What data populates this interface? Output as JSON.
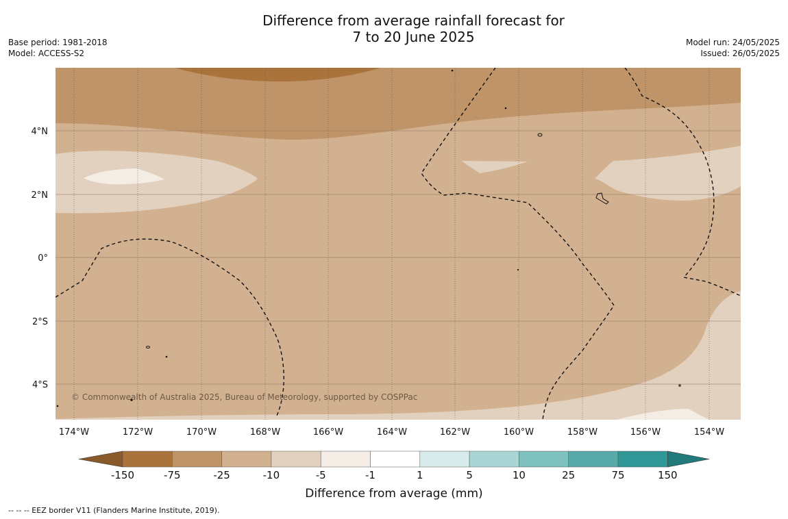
{
  "title_line1": "Difference from average rainfall forecast for",
  "title_line2": "7 to 20 June 2025",
  "meta_left": [
    "Base period: 1981-2018",
    "Model: ACCESS-S2"
  ],
  "meta_right": [
    "Model run: 24/05/2025",
    "Issued: 26/05/2025"
  ],
  "lat_labels": [
    "4°N",
    "2°N",
    "0°",
    "2°S",
    "4°S"
  ],
  "lon_labels": [
    "174°W",
    "172°W",
    "170°W",
    "168°W",
    "166°W",
    "164°W",
    "162°W",
    "160°W",
    "158°W",
    "156°W",
    "154°W"
  ],
  "credit": "© Commonwealth of Australia 2025, Bureau of Meteorology, supported by COSPPac",
  "colorbar": {
    "ticks": [
      "-150",
      "-75",
      "-25",
      "-10",
      "-5",
      "-1",
      "1",
      "5",
      "10",
      "25",
      "75",
      "150"
    ],
    "colors": [
      "#8b5a2b",
      "#ab733c",
      "#c09469",
      "#d2b190",
      "#e3d1bf",
      "#f3ede6",
      "#ffffff",
      "#d7ecea",
      "#a9d6d5",
      "#7fc1bf",
      "#58aaa8",
      "#2f9795",
      "#207b7a"
    ],
    "label": "Difference from average (mm)"
  },
  "footer": "--  --  -- EEZ border V11 (Flanders Marine Institute, 2019)."
}
